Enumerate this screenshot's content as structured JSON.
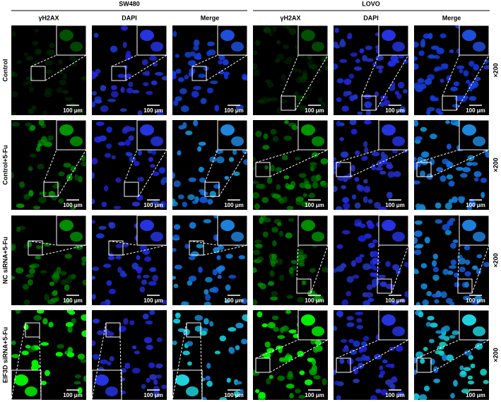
{
  "groups": [
    {
      "title": "SW480",
      "columns": [
        "γH2AX",
        "DAPI",
        "Merge"
      ]
    },
    {
      "title": "LOVO",
      "columns": [
        "γH2AX",
        "DAPI",
        "Merge"
      ]
    }
  ],
  "rows": [
    {
      "label": "Control",
      "magnification": "×200"
    },
    {
      "label": "Control+5-Fu",
      "magnification": "×200"
    },
    {
      "label": "NC siRNA+5-Fu",
      "magnification": "×200"
    },
    {
      "label": "EIF3D siRNA+5-Fu",
      "magnification": "×200"
    }
  ],
  "scale_bar": "100 μm"
}
